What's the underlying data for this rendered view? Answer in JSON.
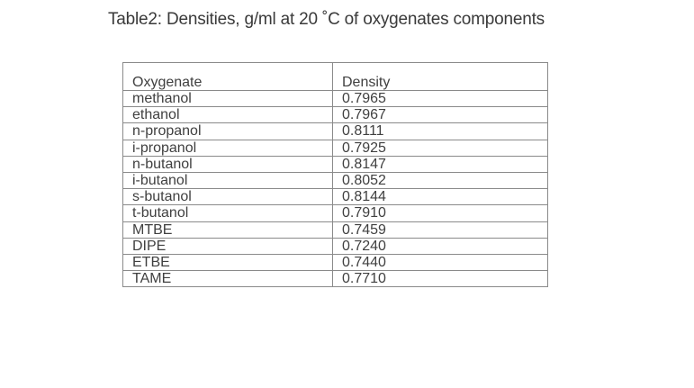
{
  "caption": "Table2: Densities, g/ml at 20 ˚C of oxygenates components",
  "table": {
    "headers": [
      "Oxygenate",
      "Density"
    ],
    "rows": [
      [
        "methanol",
        "0.7965"
      ],
      [
        "ethanol",
        "0.7967"
      ],
      [
        "n-propanol",
        "0.8111"
      ],
      [
        "i-propanol",
        "0.7925"
      ],
      [
        "n-butanol",
        "0.8147"
      ],
      [
        "i-butanol",
        "0.8052"
      ],
      [
        "s-butanol",
        "0.8144"
      ],
      [
        "t-butanol",
        "0.7910"
      ],
      [
        "MTBE",
        "0.7459"
      ],
      [
        "DIPE",
        "0.7240"
      ],
      [
        "ETBE",
        "0.7440"
      ],
      [
        "TAME",
        "0.7710"
      ]
    ]
  }
}
